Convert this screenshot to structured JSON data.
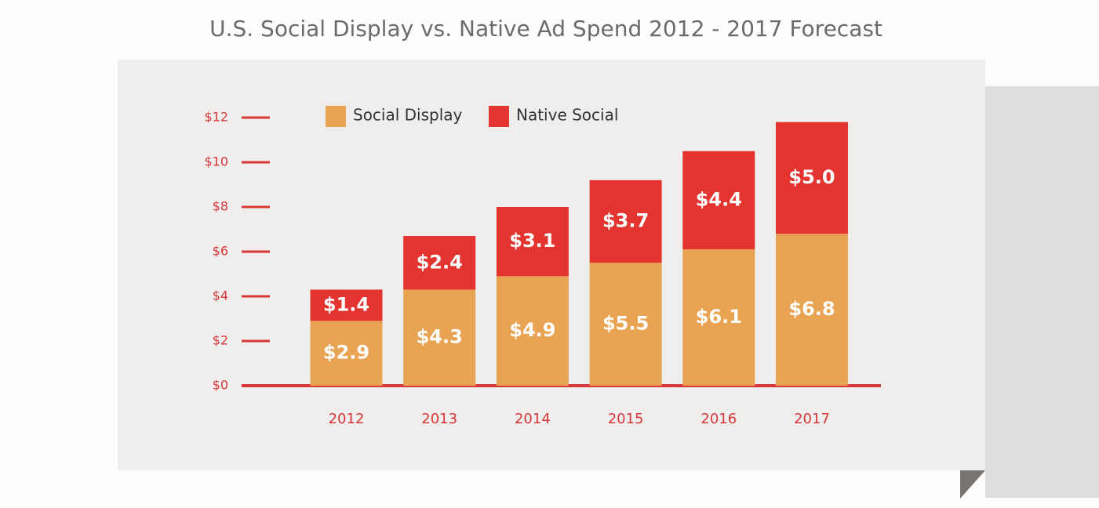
{
  "chart_data": {
    "type": "stacked_bar",
    "title": "U.S. Social Display vs. Native Ad Spend 2012 - 2017 Forecast",
    "categories": [
      "2012",
      "2013",
      "2014",
      "2015",
      "2016",
      "2017"
    ],
    "series": [
      {
        "name": "Social Display",
        "color": "#e8a452",
        "values": [
          2.9,
          4.3,
          4.9,
          5.5,
          6.1,
          6.8
        ],
        "value_labels": [
          "$2.9",
          "$4.3",
          "$4.9",
          "$5.5",
          "$6.1",
          "$6.8"
        ]
      },
      {
        "name": "Native Social",
        "color": "#e3342f",
        "values": [
          1.4,
          2.4,
          3.1,
          3.7,
          4.4,
          5.0
        ],
        "value_labels": [
          "$1.4",
          "$2.4",
          "$3.1",
          "$3.7",
          "$4.4",
          "$5.0"
        ]
      }
    ],
    "ylim": [
      0,
      12
    ],
    "yticks": [
      {
        "value": 0,
        "label": "$0"
      },
      {
        "value": 2,
        "label": "$2"
      },
      {
        "value": 4,
        "label": "$4"
      },
      {
        "value": 6,
        "label": "$6"
      },
      {
        "value": 8,
        "label": "$8"
      },
      {
        "value": 10,
        "label": "$10"
      },
      {
        "value": 12,
        "label": "$12"
      }
    ],
    "legend": "top"
  }
}
